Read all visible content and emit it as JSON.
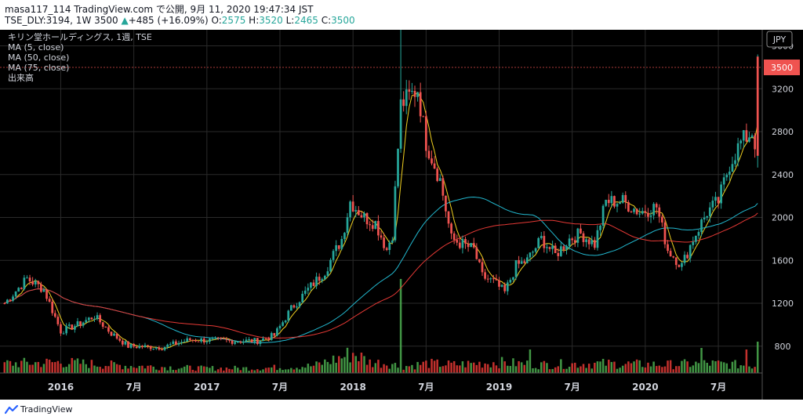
{
  "header": {
    "line1": "masa117_114 TradingView.com で公開, 9月 11, 2020 19:47:34 JST",
    "line2_prefix": "TSE_DLY:3194, 1W 3500",
    "change_arrow": "▲",
    "change": "+485 (+16.09%)",
    "o_label": "O:",
    "o": "2575",
    "h_label": "H:",
    "h": "3520",
    "l_label": "L:",
    "l": "2465",
    "c_label": "C:",
    "c": "3500"
  },
  "legend": {
    "title": "キリン堂ホールディングス, 1週, TSE",
    "items": [
      "MA (5, close)",
      "MA (50, close)",
      "MA (75, close)",
      "出来高"
    ]
  },
  "currency": "JPY",
  "last_price": "3500",
  "footer": {
    "brand": "TradingView"
  },
  "colors": {
    "up": "#26a69a",
    "down": "#ef5350",
    "ma5": "#f0d020",
    "ma50": "#22b8cf",
    "ma75": "#e53935",
    "vol_up": "#4caf50",
    "vol_down": "#e53935",
    "grid": "#2a2a2a",
    "text": "#d1d4dc"
  },
  "chart_data": {
    "type": "candlestick",
    "title": "キリン堂ホールディングス, 1週, TSE",
    "y_axis_ticks": [
      800,
      1200,
      1600,
      2000,
      2400,
      2800,
      3200,
      3600
    ],
    "ylim": [
      550,
      3750
    ],
    "x_axis_ticks": [
      "2016",
      "7月",
      "2017",
      "7月",
      "2018",
      "7月",
      "2019",
      "7月",
      "2020",
      "7月"
    ],
    "x_tick_week_index": [
      20,
      46,
      72,
      98,
      124,
      150,
      176,
      202,
      228,
      254
    ],
    "weeks": 269,
    "price_path": [
      [
        0,
        1200
      ],
      [
        8,
        1430
      ],
      [
        14,
        1330
      ],
      [
        20,
        940
      ],
      [
        26,
        1000
      ],
      [
        32,
        1080
      ],
      [
        38,
        920
      ],
      [
        44,
        800
      ],
      [
        56,
        790
      ],
      [
        66,
        860
      ],
      [
        80,
        850
      ],
      [
        90,
        850
      ],
      [
        96,
        900
      ],
      [
        102,
        1150
      ],
      [
        108,
        1330
      ],
      [
        114,
        1500
      ],
      [
        120,
        1800
      ],
      [
        123,
        2150
      ],
      [
        128,
        2000
      ],
      [
        132,
        1950
      ],
      [
        136,
        1700
      ],
      [
        138,
        1850
      ],
      [
        141,
        3050
      ],
      [
        147,
        3200
      ],
      [
        150,
        2700
      ],
      [
        155,
        2350
      ],
      [
        159,
        1800
      ],
      [
        163,
        1750
      ],
      [
        167,
        1700
      ],
      [
        170,
        1450
      ],
      [
        174,
        1400
      ],
      [
        178,
        1300
      ],
      [
        182,
        1550
      ],
      [
        186,
        1600
      ],
      [
        191,
        1800
      ],
      [
        196,
        1650
      ],
      [
        201,
        1800
      ],
      [
        205,
        1850
      ],
      [
        210,
        1750
      ],
      [
        214,
        2150
      ],
      [
        220,
        2150
      ],
      [
        226,
        2050
      ],
      [
        232,
        2100
      ],
      [
        236,
        1700
      ],
      [
        241,
        1550
      ],
      [
        245,
        1800
      ],
      [
        250,
        2050
      ],
      [
        254,
        2150
      ],
      [
        258,
        2500
      ],
      [
        262,
        2700
      ],
      [
        266,
        2800
      ],
      [
        268,
        2600
      ]
    ],
    "volume_path": [
      [
        0,
        40
      ],
      [
        20,
        45
      ],
      [
        45,
        30
      ],
      [
        70,
        20
      ],
      [
        90,
        20
      ],
      [
        110,
        30
      ],
      [
        121,
        70
      ],
      [
        124,
        85
      ],
      [
        130,
        45
      ],
      [
        138,
        40
      ],
      [
        140,
        28
      ],
      [
        144,
        30
      ],
      [
        150,
        40
      ],
      [
        160,
        35
      ],
      [
        175,
        45
      ],
      [
        190,
        35
      ],
      [
        210,
        40
      ],
      [
        235,
        35
      ],
      [
        250,
        40
      ],
      [
        260,
        35
      ],
      [
        268,
        30
      ]
    ],
    "volume_spikes": [
      [
        141,
        120
      ],
      [
        187,
        30
      ],
      [
        248,
        32
      ],
      [
        264,
        30
      ],
      [
        268,
        40
      ]
    ],
    "last_candle": {
      "open": 2575,
      "high": 3520,
      "low": 2465,
      "close": 3500
    },
    "series": [
      {
        "name": "MA (5, close)",
        "period": 5
      },
      {
        "name": "MA (50, close)",
        "period": 50
      },
      {
        "name": "MA (75, close)",
        "period": 75
      }
    ]
  }
}
